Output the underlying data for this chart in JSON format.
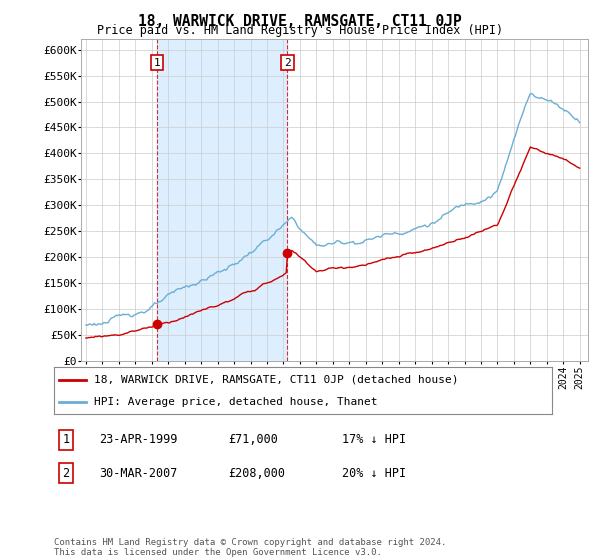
{
  "title": "18, WARWICK DRIVE, RAMSGATE, CT11 0JP",
  "subtitle": "Price paid vs. HM Land Registry's House Price Index (HPI)",
  "ylabel_ticks": [
    "£0",
    "£50K",
    "£100K",
    "£150K",
    "£200K",
    "£250K",
    "£300K",
    "£350K",
    "£400K",
    "£450K",
    "£500K",
    "£550K",
    "£600K"
  ],
  "ytick_values": [
    0,
    50000,
    100000,
    150000,
    200000,
    250000,
    300000,
    350000,
    400000,
    450000,
    500000,
    550000,
    600000
  ],
  "ylim": [
    0,
    620000
  ],
  "hpi_color": "#6baed6",
  "price_color": "#cc0000",
  "shade_color": "#ddeeff",
  "marker1_date": 1999.31,
  "marker1_price": 71000,
  "marker1_label": "1",
  "marker2_date": 2007.24,
  "marker2_price": 208000,
  "marker2_label": "2",
  "legend_line1": "18, WARWICK DRIVE, RAMSGATE, CT11 0JP (detached house)",
  "legend_line2": "HPI: Average price, detached house, Thanet",
  "table_row1_num": "1",
  "table_row1_date": "23-APR-1999",
  "table_row1_price": "£71,000",
  "table_row1_hpi": "17% ↓ HPI",
  "table_row2_num": "2",
  "table_row2_date": "30-MAR-2007",
  "table_row2_price": "£208,000",
  "table_row2_hpi": "20% ↓ HPI",
  "footnote": "Contains HM Land Registry data © Crown copyright and database right 2024.\nThis data is licensed under the Open Government Licence v3.0.",
  "background_color": "#ffffff",
  "grid_color": "#cccccc"
}
